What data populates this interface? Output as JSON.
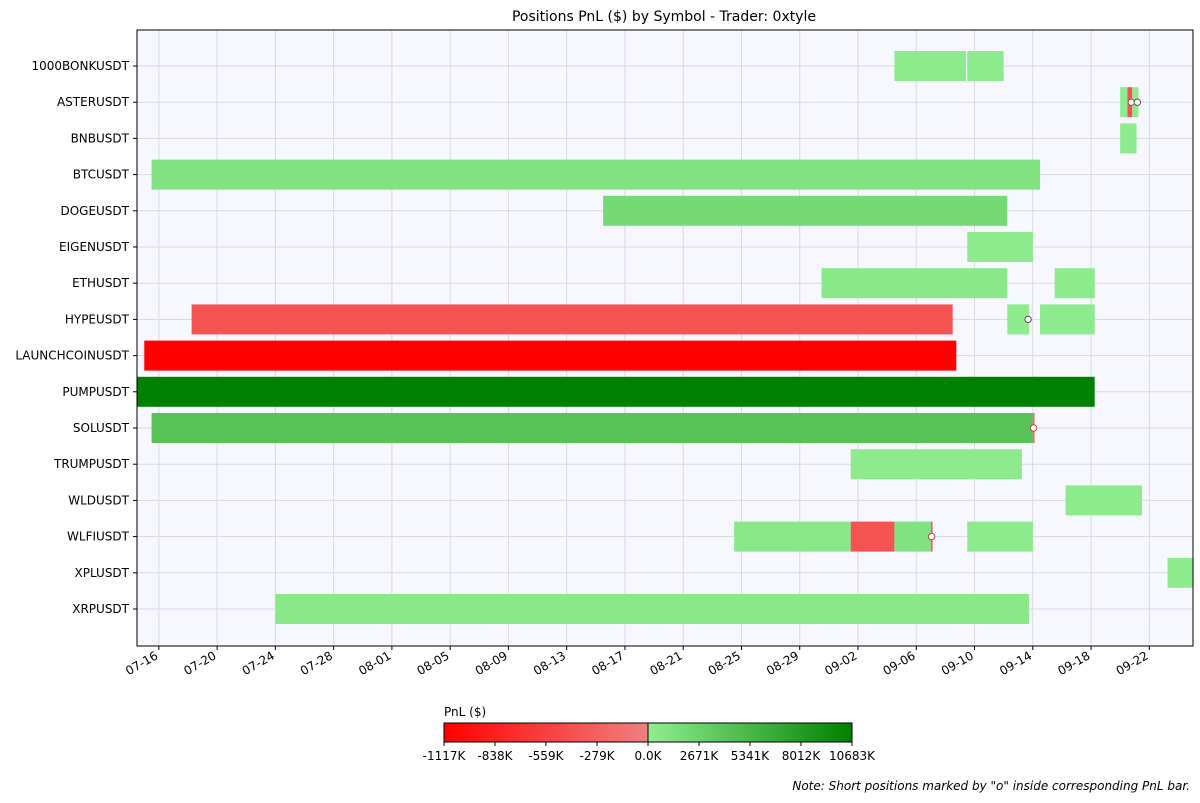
{
  "chart_data": {
    "type": "gantt",
    "title": "Positions PnL ($) by Symbol - Trader: 0xtyle",
    "x_axis": {
      "type": "date",
      "year": 2025,
      "range": [
        "2025-07-14T12:00",
        "2025-09-25T00:00"
      ],
      "tick_labels": [
        "07-16",
        "07-20",
        "07-24",
        "07-28",
        "08-01",
        "08-05",
        "08-09",
        "08-13",
        "08-17",
        "08-21",
        "08-25",
        "08-29",
        "09-02",
        "09-06",
        "09-10",
        "09-14",
        "09-18",
        "09-22"
      ],
      "grid": true
    },
    "categories": [
      "1000BONKUSDT",
      "ASTERUSDT",
      "BNBUSDT",
      "BTCUSDT",
      "DOGEUSDT",
      "EIGENUSDT",
      "ETHUSDT",
      "HYPEUSDT",
      "LAUNCHCOINUSDT",
      "PUMPUSDT",
      "SOLUSDT",
      "TRUMPUSDT",
      "WLDUSDT",
      "WLFIUSDT",
      "XPLUSDT",
      "XRPUSDT"
    ],
    "positions": [
      {
        "symbol": "1000BONKUSDT",
        "start": "2025-09-04T12:00",
        "end": "2025-09-09T10:00",
        "pnl_k": 300,
        "short": false
      },
      {
        "symbol": "1000BONKUSDT",
        "start": "2025-09-09T12:00",
        "end": "2025-09-12T00:00",
        "pnl_k": 300,
        "short": false
      },
      {
        "symbol": "ASTERUSDT",
        "start": "2025-09-20T00:00",
        "end": "2025-09-20T12:00",
        "pnl_k": 200,
        "short": false
      },
      {
        "symbol": "ASTERUSDT",
        "start": "2025-09-20T12:00",
        "end": "2025-09-20T20:00",
        "pnl_k": -400,
        "short": true
      },
      {
        "symbol": "ASTERUSDT",
        "start": "2025-09-20T20:00",
        "end": "2025-09-21T06:00",
        "pnl_k": 150,
        "short": true
      },
      {
        "symbol": "BNBUSDT",
        "start": "2025-09-20T00:00",
        "end": "2025-09-21T03:00",
        "pnl_k": 250,
        "short": false
      },
      {
        "symbol": "BTCUSDT",
        "start": "2025-07-15T12:00",
        "end": "2025-09-14T12:00",
        "pnl_k": 1200,
        "short": false
      },
      {
        "symbol": "DOGEUSDT",
        "start": "2025-08-15T12:00",
        "end": "2025-09-12T06:00",
        "pnl_k": 2000,
        "short": false
      },
      {
        "symbol": "EIGENUSDT",
        "start": "2025-09-09T12:00",
        "end": "2025-09-14T00:00",
        "pnl_k": 300,
        "short": false
      },
      {
        "symbol": "ETHUSDT",
        "start": "2025-08-30T12:00",
        "end": "2025-09-12T06:00",
        "pnl_k": 500,
        "short": false
      },
      {
        "symbol": "ETHUSDT",
        "start": "2025-09-15T12:00",
        "end": "2025-09-18T06:00",
        "pnl_k": 300,
        "short": false
      },
      {
        "symbol": "HYPEUSDT",
        "start": "2025-07-18T06:00",
        "end": "2025-09-08T12:00",
        "pnl_k": -400,
        "short": false
      },
      {
        "symbol": "HYPEUSDT",
        "start": "2025-09-12T06:00",
        "end": "2025-09-13T18:00",
        "pnl_k": 200,
        "short": true
      },
      {
        "symbol": "HYPEUSDT",
        "start": "2025-09-14T12:00",
        "end": "2025-09-18T06:00",
        "pnl_k": 300,
        "short": false
      },
      {
        "symbol": "LAUNCHCOINUSDT",
        "start": "2025-07-15T00:00",
        "end": "2025-09-08T18:00",
        "pnl_k": -1117,
        "short": false
      },
      {
        "symbol": "PUMPUSDT",
        "start": "2025-07-14T12:00",
        "end": "2025-09-18T06:00",
        "pnl_k": 10683,
        "short": false
      },
      {
        "symbol": "SOLUSDT",
        "start": "2025-07-15T12:00",
        "end": "2025-09-14T00:00",
        "pnl_k": 4200,
        "short": false
      },
      {
        "symbol": "SOLUSDT",
        "start": "2025-09-14T00:00",
        "end": "2025-09-14T03:00",
        "pnl_k": -200,
        "short": true
      },
      {
        "symbol": "TRUMPUSDT",
        "start": "2025-09-01T12:00",
        "end": "2025-09-13T06:00",
        "pnl_k": 250,
        "short": false
      },
      {
        "symbol": "WLDUSDT",
        "start": "2025-09-16T06:00",
        "end": "2025-09-21T12:00",
        "pnl_k": 300,
        "short": false
      },
      {
        "symbol": "WLFIUSDT",
        "start": "2025-08-24T12:00",
        "end": "2025-09-01T12:00",
        "pnl_k": 600,
        "short": false
      },
      {
        "symbol": "WLFIUSDT",
        "start": "2025-09-01T12:00",
        "end": "2025-09-04T12:00",
        "pnl_k": -400,
        "short": false
      },
      {
        "symbol": "WLFIUSDT",
        "start": "2025-09-04T12:00",
        "end": "2025-09-07T00:00",
        "pnl_k": 1200,
        "short": false
      },
      {
        "symbol": "WLFIUSDT",
        "start": "2025-09-07T00:00",
        "end": "2025-09-07T03:00",
        "pnl_k": -300,
        "short": true
      },
      {
        "symbol": "WLFIUSDT",
        "start": "2025-09-09T12:00",
        "end": "2025-09-14T00:00",
        "pnl_k": 300,
        "short": false
      },
      {
        "symbol": "XPLUSDT",
        "start": "2025-09-23T06:00",
        "end": "2025-09-25T00:00",
        "pnl_k": 200,
        "short": false
      },
      {
        "symbol": "XRPUSDT",
        "start": "2025-07-24T00:00",
        "end": "2025-09-13T18:00",
        "pnl_k": 500,
        "short": false
      }
    ],
    "colorbar": {
      "label": "PnL ($)",
      "placement": "bottom-center",
      "tick_labels": [
        "-1117K",
        "-838K",
        "-559K",
        "-279K",
        "0.0K",
        "2671K",
        "5341K",
        "8012K",
        "10683K"
      ],
      "neg_values_k": [
        -1117,
        -838,
        -559,
        -279,
        0
      ],
      "pos_values_k": [
        0,
        2671,
        5341,
        8012,
        10683
      ],
      "neg_colors": [
        "#ff0000",
        "#f08080"
      ],
      "pos_colors": [
        "#90ee90",
        "#008000"
      ]
    },
    "short_marker": "o"
  },
  "note": "Note: Short positions marked by \"o\" inside corresponding PnL bar."
}
